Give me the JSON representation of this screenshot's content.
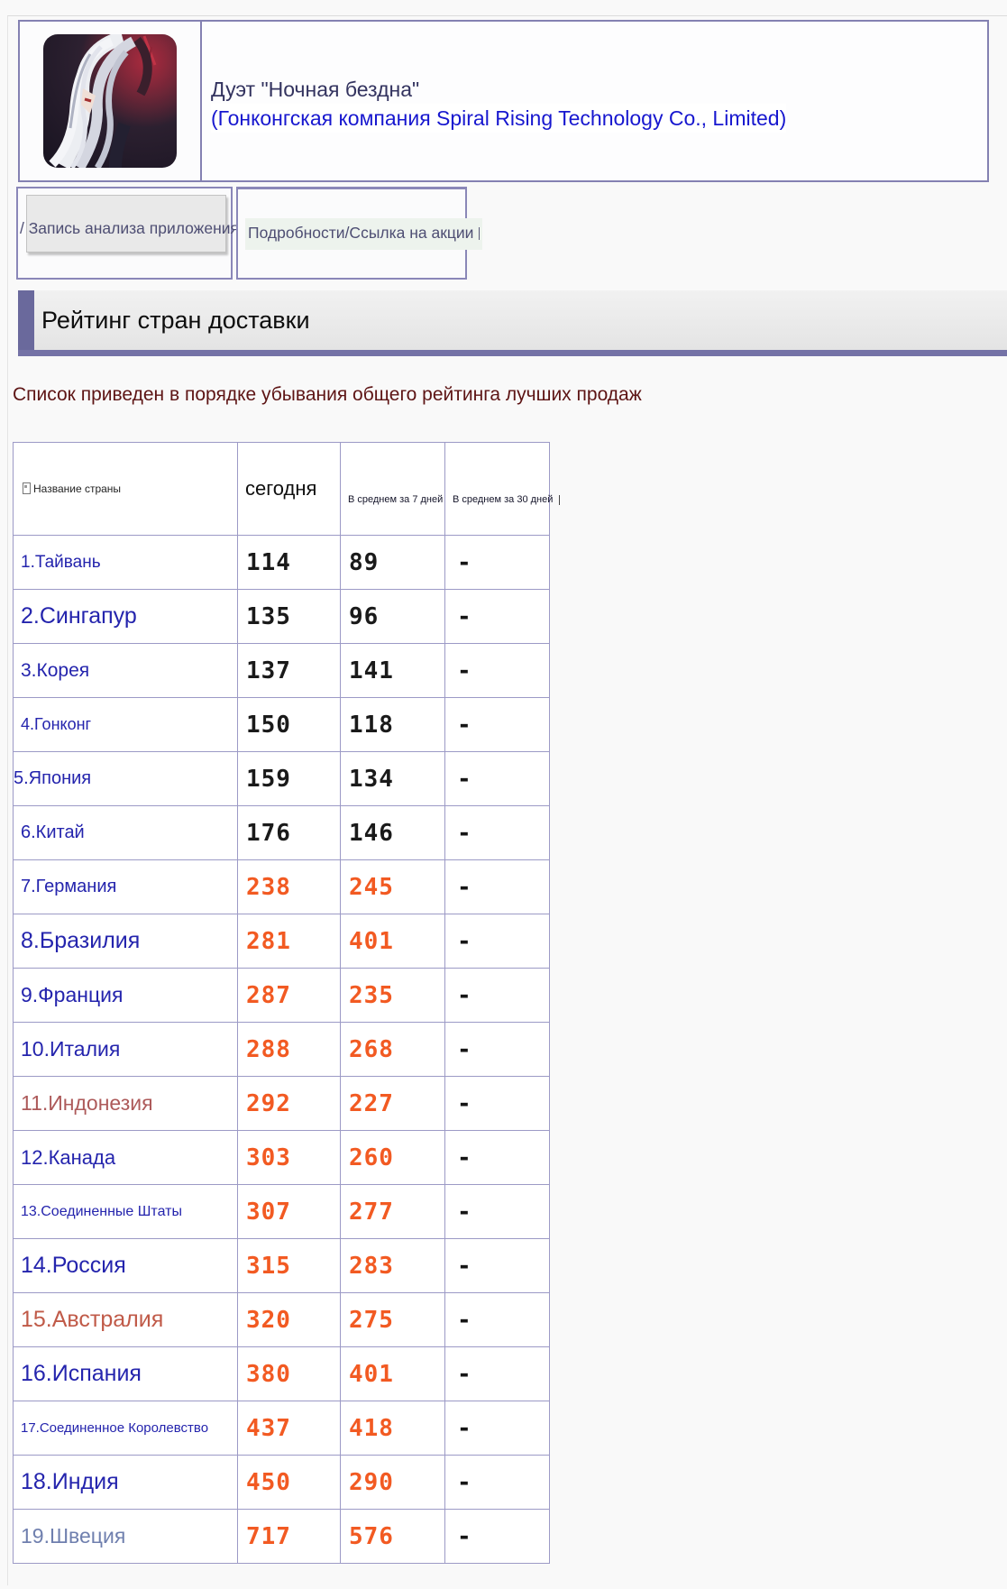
{
  "header": {
    "title": "Дуэт \"Ночная бездна\"",
    "subtitle": "(Гонконгская компания Spiral Rising Technology Co., Limited)",
    "icon": "night-abyss-duet-app-icon"
  },
  "tabs": [
    {
      "label": "/ Запись анализа приложения"
    },
    {
      "label": "Подробности/Ссылка на акции"
    }
  ],
  "section": {
    "title": "Рейтинг стран доставки"
  },
  "note": "Список приведен в порядке убывания общего рейтинга лучших продаж",
  "table": {
    "columns": [
      "Название страны",
      "сегодня",
      "В среднем за 7 дней",
      "В среднем за 30 дней"
    ],
    "rows": [
      {
        "name": "1.Тайвань",
        "today": "114",
        "avg7": "89",
        "avg30": "-"
      },
      {
        "name": "2.Сингапур",
        "today": "135",
        "avg7": "96",
        "avg30": "-"
      },
      {
        "name": "3.Корея",
        "today": "137",
        "avg7": "141",
        "avg30": "-"
      },
      {
        "name": "4.Гонконг",
        "today": "150",
        "avg7": "118",
        "avg30": "-"
      },
      {
        "name": "5.Япония",
        "today": "159",
        "avg7": "134",
        "avg30": "-"
      },
      {
        "name": "6.Китай",
        "today": "176",
        "avg7": "146",
        "avg30": "-"
      },
      {
        "name": "7.Германия",
        "today": "238",
        "avg7": "245",
        "avg30": "-"
      },
      {
        "name": "8.Бразилия",
        "today": "281",
        "avg7": "401",
        "avg30": "-"
      },
      {
        "name": "9.Франция",
        "today": "287",
        "avg7": "235",
        "avg30": "-"
      },
      {
        "name": "10.Италия",
        "today": "288",
        "avg7": "268",
        "avg30": "-"
      },
      {
        "name": "11.Индонезия",
        "today": "292",
        "avg7": "227",
        "avg30": "-"
      },
      {
        "name": "12.Канада",
        "today": "303",
        "avg7": "260",
        "avg30": "-"
      },
      {
        "name": "13.Соединенные Штаты",
        "today": "307",
        "avg7": "277",
        "avg30": "-"
      },
      {
        "name": "14.Россия",
        "today": "315",
        "avg7": "283",
        "avg30": "-"
      },
      {
        "name": "15.Австралия",
        "today": "320",
        "avg7": "275",
        "avg30": "-"
      },
      {
        "name": "16.Испания",
        "today": "380",
        "avg7": "401",
        "avg30": "-"
      },
      {
        "name": "17.Соединенное Королевство",
        "today": "437",
        "avg7": "418",
        "avg30": "-"
      },
      {
        "name": "18.Индия",
        "today": "450",
        "avg7": "290",
        "avg30": "-"
      },
      {
        "name": "19.Швеция",
        "today": "717",
        "avg7": "576",
        "avg30": "-"
      }
    ]
  },
  "colors": {
    "accent_purple": "#7472a6",
    "link_blue": "#2424ad",
    "visited_rose": "#b05a55",
    "visited_slate": "#6f7fae",
    "number_black": "#1a1a1a",
    "number_orange": "#f25a22",
    "note_maroon": "#5d1414",
    "company_link_blue": "#1717cf"
  }
}
